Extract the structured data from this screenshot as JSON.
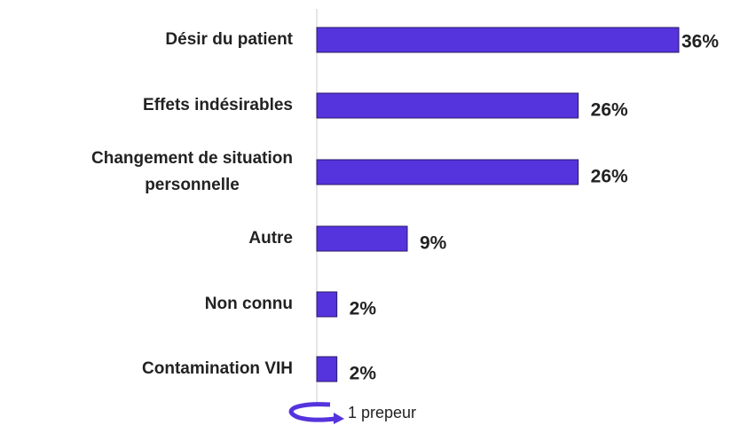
{
  "chart_data": {
    "type": "bar",
    "orientation": "horizontal",
    "categories": [
      "Désir du patient",
      "Effets indésirables",
      "Changement de situation\npersonnelle",
      "Autre",
      "Non connu",
      "Contamination VIH"
    ],
    "values": [
      36,
      26,
      26,
      9,
      2,
      2
    ],
    "value_labels": [
      "36%",
      "26%",
      "26%",
      "9%",
      "2%",
      "2%"
    ],
    "color": "#5533dd",
    "xlim": [
      0,
      36
    ],
    "annotation": "1 prepeur"
  }
}
